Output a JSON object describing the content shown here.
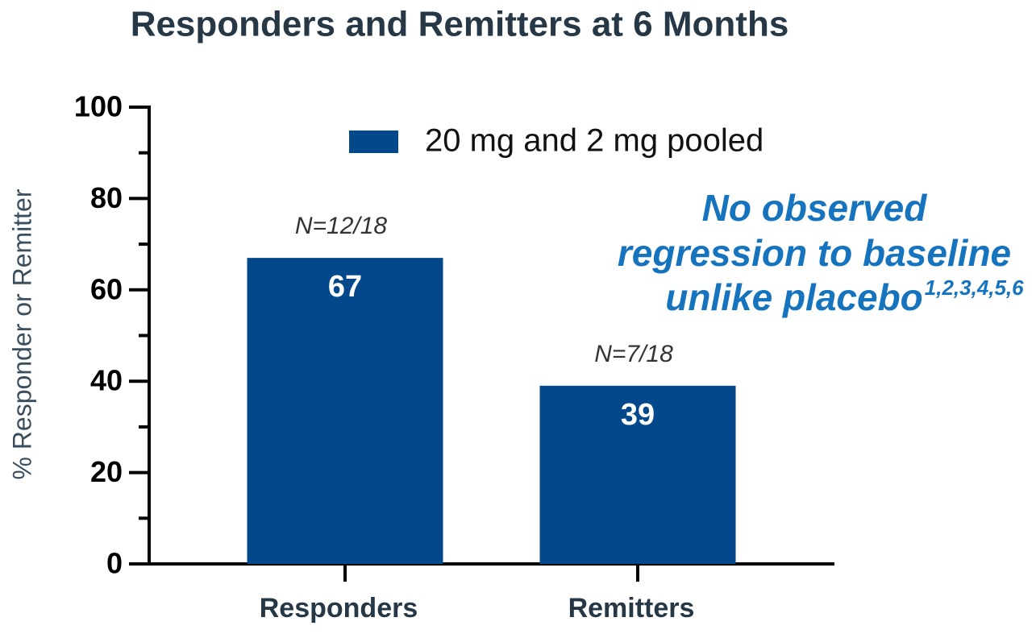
{
  "chart_data": {
    "type": "bar",
    "title": "Responders and Remitters at 6 Months",
    "ylabel": "% Responder or Remitter",
    "categories": [
      "Responders",
      "Remitters"
    ],
    "series": [
      {
        "name": "20 mg and 2 mg pooled",
        "color": "#03488a",
        "values": [
          67,
          39
        ]
      }
    ],
    "bar_annotations": [
      "N=12/18",
      "N=7/18"
    ],
    "callout": {
      "lines": [
        "No observed",
        "regression to baseline",
        "unlike placebo"
      ],
      "superscript": "1,2,3,4,5,6",
      "color": "#1673bd"
    },
    "ylim": [
      0,
      100
    ],
    "yticks": [
      0,
      20,
      40,
      60,
      80,
      100
    ],
    "yminorticks": [
      10,
      30,
      50,
      70,
      90
    ]
  }
}
